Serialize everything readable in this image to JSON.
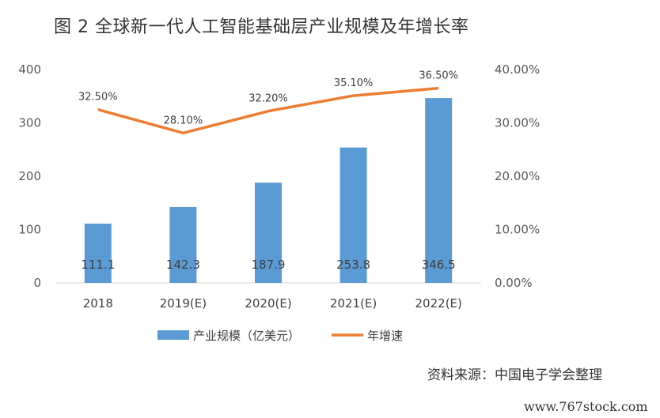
{
  "title": "图 2 全球新一代人工智能基础层产业规模及年增长率",
  "source": "资料来源：中国电子学会整理",
  "watermark": "www.767stock.com",
  "colors": {
    "bar": "#5b9bd5",
    "line": "#ed7d31",
    "axis": "#d9d9d9",
    "text": "#404040"
  },
  "chart_data": {
    "type": "bar",
    "categories": [
      "2018",
      "2019(E)",
      "2020(E)",
      "2021(E)",
      "2022(E)"
    ],
    "y_ticks": [
      "0",
      "100",
      "200",
      "300",
      "400"
    ],
    "y2_ticks": [
      "0.00%",
      "10.00%",
      "20.00%",
      "30.00%",
      "40.00%"
    ],
    "ylim": [
      0,
      400
    ],
    "y2lim": [
      0,
      40
    ],
    "series": [
      {
        "name": "产业规模（亿美元）",
        "type": "bar",
        "axis": "left",
        "values": [
          111.1,
          142.3,
          187.9,
          253.8,
          346.5
        ],
        "labels": [
          "111.1",
          "142.3",
          "187.9",
          "253.8",
          "346.5"
        ]
      },
      {
        "name": "年增速",
        "type": "line",
        "axis": "right",
        "values": [
          32.5,
          28.1,
          32.2,
          35.1,
          36.5
        ],
        "labels": [
          "32.50%",
          "28.10%",
          "32.20%",
          "35.10%",
          "36.50%"
        ]
      }
    ],
    "legend_position": "bottom"
  }
}
